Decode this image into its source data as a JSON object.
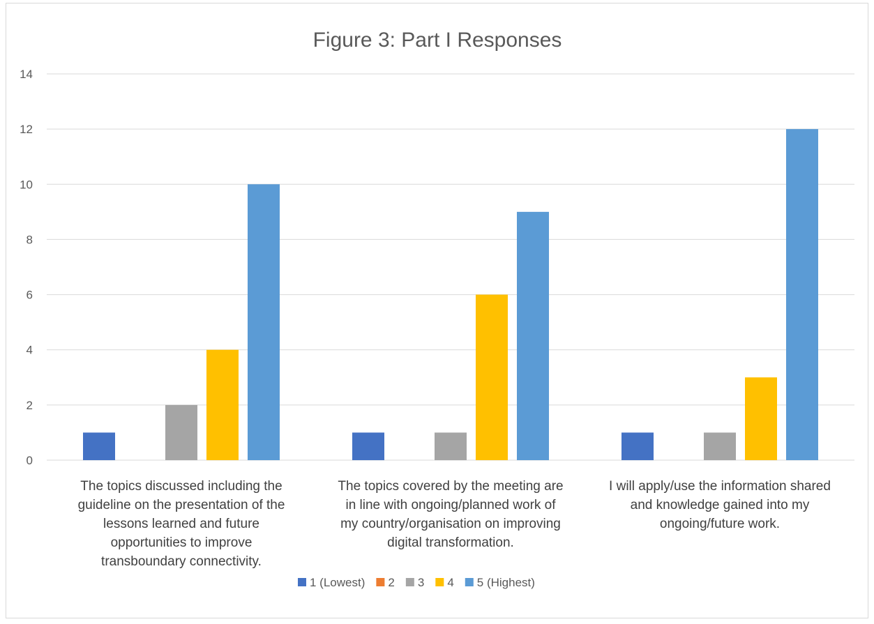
{
  "chart_data": {
    "type": "bar",
    "title": "Figure 3: Part I Responses",
    "xlabel": "",
    "ylabel": "",
    "ylim": [
      0,
      14
    ],
    "yticks": [
      0,
      2,
      4,
      6,
      8,
      10,
      12,
      14
    ],
    "grid": true,
    "legend_position": "bottom",
    "categories": [
      "The topics discussed including the guideline on the presentation of the lessons learned and future opportunities to improve transboundary connectivity.",
      "The topics covered by the meeting are in line with ongoing/planned work of my country/organisation on improving digital transformation.",
      "I will apply/use the information shared and knowledge gained into my ongoing/future work."
    ],
    "category_lines": [
      [
        "The topics discussed including the",
        "guideline on the presentation of the",
        "lessons learned and future",
        "opportunities to improve",
        "transboundary connectivity."
      ],
      [
        "The topics covered by the meeting are",
        "in line with ongoing/planned work of",
        "my country/organisation on improving",
        "digital transformation."
      ],
      [
        "I will apply/use the information shared",
        "and knowledge gained into my",
        "ongoing/future work."
      ]
    ],
    "series": [
      {
        "name": "1 (Lowest)",
        "color": "#4472C4",
        "values": [
          1,
          1,
          1
        ]
      },
      {
        "name": "2",
        "color": "#ED7D31",
        "values": [
          0,
          0,
          0
        ]
      },
      {
        "name": "3",
        "color": "#A5A5A5",
        "values": [
          2,
          1,
          1
        ]
      },
      {
        "name": "4",
        "color": "#FFC000",
        "values": [
          4,
          6,
          3
        ]
      },
      {
        "name": "5 (Highest)",
        "color": "#5B9BD5",
        "values": [
          10,
          9,
          12
        ]
      }
    ]
  }
}
